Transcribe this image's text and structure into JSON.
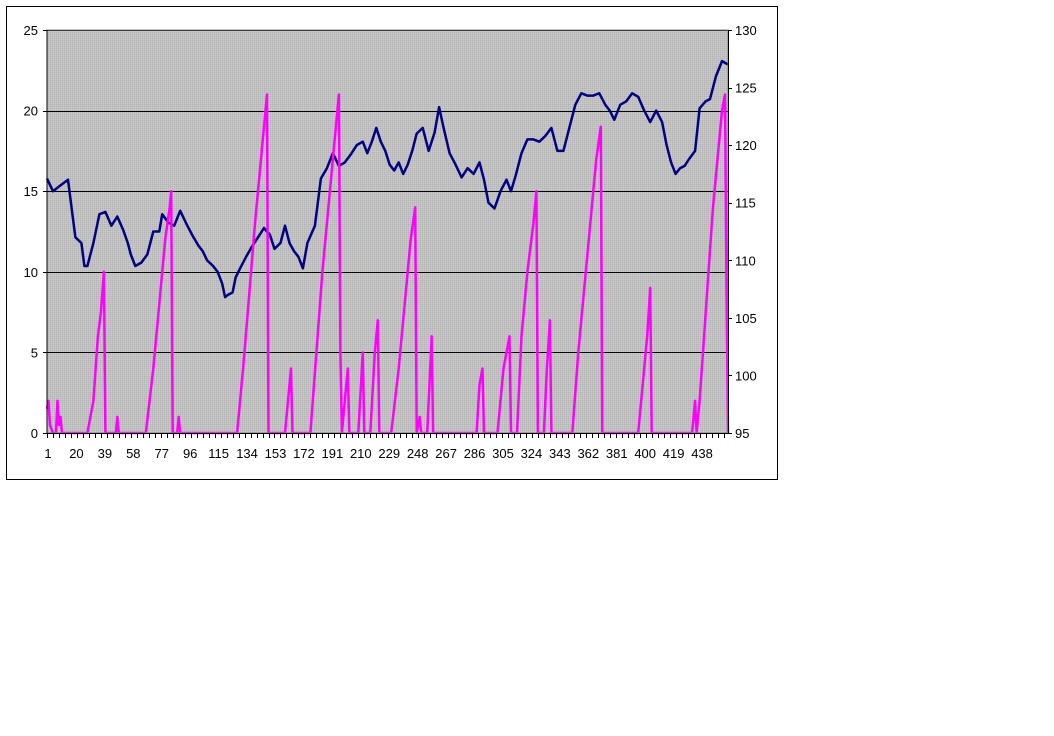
{
  "chart_data": {
    "type": "line",
    "title": "",
    "xlabel": "",
    "ylabel": "",
    "y2label": "",
    "grid": true,
    "legend": "none",
    "x_range": [
      1,
      456
    ],
    "x_tick_labels": [
      "1",
      "20",
      "39",
      "58",
      "77",
      "96",
      "115",
      "134",
      "153",
      "172",
      "191",
      "210",
      "229",
      "248",
      "267",
      "286",
      "305",
      "324",
      "343",
      "362",
      "381",
      "400",
      "419",
      "438"
    ],
    "ylim": [
      0,
      25
    ],
    "y_tick_labels": [
      "0",
      "5",
      "10",
      "15",
      "20",
      "25"
    ],
    "y2lim": [
      95,
      130
    ],
    "y2_tick_labels": [
      "95",
      "100",
      "105",
      "110",
      "115",
      "120",
      "125",
      "130"
    ],
    "colors": {
      "plot_bg": "#c0c0c0",
      "primary_series": "#ff00ff",
      "secondary_series": "#000080",
      "grid": "#000000"
    },
    "series": [
      {
        "axis": "secondary",
        "color": "#000080",
        "points": [
          [
            1,
            117.1
          ],
          [
            5,
            116.0
          ],
          [
            10,
            116.5
          ],
          [
            15,
            117.0
          ],
          [
            18,
            114.0
          ],
          [
            20,
            112.0
          ],
          [
            24,
            111.5
          ],
          [
            26,
            109.5
          ],
          [
            28,
            109.5
          ],
          [
            32,
            111.5
          ],
          [
            36,
            114.0
          ],
          [
            40,
            114.2
          ],
          [
            44,
            113.0
          ],
          [
            48,
            113.8
          ],
          [
            52,
            112.6
          ],
          [
            55,
            111.5
          ],
          [
            57,
            110.5
          ],
          [
            60,
            109.5
          ],
          [
            64,
            109.8
          ],
          [
            68,
            110.5
          ],
          [
            72,
            112.5
          ],
          [
            76,
            112.5
          ],
          [
            78,
            114.0
          ],
          [
            82,
            113.3
          ],
          [
            86,
            113.0
          ],
          [
            90,
            114.3
          ],
          [
            94,
            113.2
          ],
          [
            98,
            112.2
          ],
          [
            102,
            111.3
          ],
          [
            105,
            110.8
          ],
          [
            108,
            110.0
          ],
          [
            112,
            109.5
          ],
          [
            115,
            109.0
          ],
          [
            118,
            108.0
          ],
          [
            120,
            106.8
          ],
          [
            122,
            107.0
          ],
          [
            125,
            107.2
          ],
          [
            127,
            108.5
          ],
          [
            130,
            109.3
          ],
          [
            134,
            110.3
          ],
          [
            138,
            111.2
          ],
          [
            142,
            112.0
          ],
          [
            146,
            112.8
          ],
          [
            150,
            112.2
          ],
          [
            153,
            111.0
          ],
          [
            157,
            111.5
          ],
          [
            160,
            113.0
          ],
          [
            163,
            111.5
          ],
          [
            166,
            110.8
          ],
          [
            169,
            110.3
          ],
          [
            172,
            109.3
          ],
          [
            175,
            111.5
          ],
          [
            180,
            113.0
          ],
          [
            184,
            117.1
          ],
          [
            188,
            118.0
          ],
          [
            192,
            119.3
          ],
          [
            196,
            118.2
          ],
          [
            200,
            118.5
          ],
          [
            204,
            119.2
          ],
          [
            208,
            120.0
          ],
          [
            212,
            120.3
          ],
          [
            215,
            119.3
          ],
          [
            218,
            120.3
          ],
          [
            221,
            121.5
          ],
          [
            224,
            120.3
          ],
          [
            227,
            119.5
          ],
          [
            230,
            118.3
          ],
          [
            233,
            117.8
          ],
          [
            236,
            118.5
          ],
          [
            239,
            117.5
          ],
          [
            242,
            118.3
          ],
          [
            245,
            119.5
          ],
          [
            248,
            121.0
          ],
          [
            252,
            121.5
          ],
          [
            256,
            119.5
          ],
          [
            260,
            121.1
          ],
          [
            263,
            123.3
          ],
          [
            266,
            121.5
          ],
          [
            270,
            119.3
          ],
          [
            274,
            118.3
          ],
          [
            278,
            117.2
          ],
          [
            282,
            118.0
          ],
          [
            286,
            117.5
          ],
          [
            290,
            118.5
          ],
          [
            293,
            117.0
          ],
          [
            296,
            115.0
          ],
          [
            300,
            114.5
          ],
          [
            304,
            116.0
          ],
          [
            308,
            117.0
          ],
          [
            311,
            116.0
          ],
          [
            314,
            117.3
          ],
          [
            318,
            119.3
          ],
          [
            322,
            120.5
          ],
          [
            326,
            120.5
          ],
          [
            330,
            120.3
          ],
          [
            334,
            120.8
          ],
          [
            338,
            121.5
          ],
          [
            342,
            119.5
          ],
          [
            346,
            119.5
          ],
          [
            350,
            121.5
          ],
          [
            354,
            123.5
          ],
          [
            358,
            124.5
          ],
          [
            362,
            124.3
          ],
          [
            366,
            124.3
          ],
          [
            370,
            124.5
          ],
          [
            374,
            123.5
          ],
          [
            377,
            123.0
          ],
          [
            380,
            122.2
          ],
          [
            384,
            123.5
          ],
          [
            388,
            123.8
          ],
          [
            392,
            124.5
          ],
          [
            396,
            124.2
          ],
          [
            400,
            123.0
          ],
          [
            404,
            122.0
          ],
          [
            408,
            123.0
          ],
          [
            412,
            122.0
          ],
          [
            415,
            120.0
          ],
          [
            418,
            118.5
          ],
          [
            421,
            117.5
          ],
          [
            424,
            118.0
          ],
          [
            427,
            118.2
          ],
          [
            430,
            118.8
          ],
          [
            434,
            119.5
          ],
          [
            437,
            123.2
          ],
          [
            441,
            123.8
          ],
          [
            444,
            124.0
          ],
          [
            448,
            126.0
          ],
          [
            452,
            127.3
          ],
          [
            456,
            127.0
          ]
        ]
      },
      {
        "axis": "primary",
        "color": "#ff00ff",
        "points": [
          [
            1,
            1.5
          ],
          [
            2,
            2.0
          ],
          [
            3,
            0.5
          ],
          [
            5,
            0.0
          ],
          [
            7,
            0.0
          ],
          [
            8,
            2.0
          ],
          [
            9,
            0.5
          ],
          [
            10,
            1.0
          ],
          [
            11,
            0.0
          ],
          [
            28,
            0.0
          ],
          [
            32,
            2.0
          ],
          [
            35,
            6.0
          ],
          [
            37,
            7.5
          ],
          [
            39,
            10.0
          ],
          [
            40,
            0.0
          ],
          [
            47,
            0.0
          ],
          [
            48,
            1.0
          ],
          [
            49,
            0.0
          ],
          [
            67,
            0.0
          ],
          [
            72,
            4.0
          ],
          [
            76,
            8.0
          ],
          [
            80,
            12.0
          ],
          [
            83,
            14.0
          ],
          [
            84,
            15.0
          ],
          [
            85,
            0.0
          ],
          [
            88,
            0.0
          ],
          [
            89,
            1.0
          ],
          [
            90,
            0.0
          ],
          [
            128,
            0.0
          ],
          [
            132,
            4.0
          ],
          [
            136,
            8.5
          ],
          [
            140,
            13.0
          ],
          [
            144,
            17.0
          ],
          [
            146,
            19.0
          ],
          [
            148,
            21.0
          ],
          [
            149,
            0.0
          ],
          [
            160,
            0.0
          ],
          [
            162,
            2.0
          ],
          [
            164,
            4.0
          ],
          [
            165,
            0.0
          ],
          [
            177,
            0.0
          ],
          [
            181,
            5.0
          ],
          [
            185,
            10.0
          ],
          [
            189,
            14.0
          ],
          [
            193,
            18.0
          ],
          [
            196,
            21.0
          ],
          [
            197,
            5.0
          ],
          [
            198,
            0.0
          ],
          [
            200,
            2.0
          ],
          [
            202,
            4.0
          ],
          [
            203,
            0.0
          ],
          [
            209,
            0.0
          ],
          [
            212,
            5.0
          ],
          [
            213,
            0.0
          ],
          [
            217,
            0.0
          ],
          [
            220,
            5.0
          ],
          [
            222,
            7.0
          ],
          [
            223,
            0.0
          ],
          [
            231,
            0.0
          ],
          [
            236,
            4.0
          ],
          [
            240,
            8.0
          ],
          [
            244,
            12.0
          ],
          [
            247,
            14.0
          ],
          [
            248,
            0.0
          ],
          [
            250,
            1.0
          ],
          [
            251,
            0.0
          ],
          [
            255,
            0.0
          ],
          [
            257,
            4.0
          ],
          [
            258,
            6.0
          ],
          [
            259,
            0.0
          ],
          [
            288,
            0.0
          ],
          [
            290,
            3.0
          ],
          [
            292,
            4.0
          ],
          [
            293,
            0.0
          ],
          [
            302,
            0.0
          ],
          [
            306,
            4.0
          ],
          [
            310,
            6.0
          ],
          [
            311,
            0.0
          ],
          [
            315,
            0.0
          ],
          [
            318,
            6.0
          ],
          [
            322,
            10.0
          ],
          [
            326,
            13.0
          ],
          [
            328,
            15.0
          ],
          [
            329,
            0.0
          ],
          [
            333,
            0.0
          ],
          [
            335,
            4.0
          ],
          [
            337,
            7.0
          ],
          [
            338,
            0.0
          ],
          [
            352,
            0.0
          ],
          [
            356,
            5.0
          ],
          [
            360,
            9.0
          ],
          [
            364,
            13.0
          ],
          [
            368,
            17.0
          ],
          [
            371,
            19.0
          ],
          [
            372,
            0.0
          ],
          [
            396,
            0.0
          ],
          [
            399,
            3.0
          ],
          [
            402,
            6.0
          ],
          [
            404,
            9.0
          ],
          [
            405,
            0.0
          ],
          [
            432,
            0.0
          ],
          [
            433,
            1.0
          ],
          [
            434,
            2.0
          ],
          [
            435,
            0.0
          ],
          [
            437,
            2.0
          ],
          [
            440,
            6.0
          ],
          [
            443,
            10.0
          ],
          [
            446,
            14.0
          ],
          [
            449,
            17.0
          ],
          [
            452,
            20.0
          ],
          [
            454,
            21.0
          ],
          [
            455,
            9.0
          ],
          [
            456,
            0.0
          ]
        ]
      }
    ]
  }
}
